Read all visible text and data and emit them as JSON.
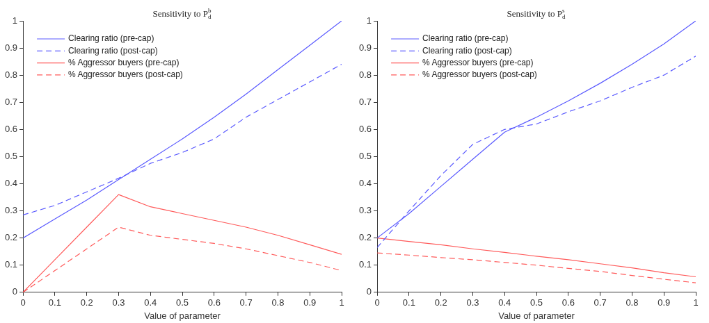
{
  "chart_data": [
    {
      "type": "line",
      "title": "Sensitivity to P$_{d}$$^{b}$",
      "xlabel": "Value of parameter",
      "x": [
        0,
        0.1,
        0.2,
        0.3,
        0.4,
        0.5,
        0.6,
        0.7,
        0.8,
        0.9,
        1
      ],
      "xlim": [
        0,
        1
      ],
      "xticks": [
        0,
        0.1,
        0.2,
        0.3,
        0.4,
        0.5,
        0.6,
        0.7,
        0.8,
        0.9,
        1
      ],
      "ylim": [
        0,
        1
      ],
      "yticks": [
        0,
        0.1,
        0.2,
        0.3,
        0.4,
        0.5,
        0.6,
        0.7,
        0.8,
        0.9,
        1
      ],
      "grid": false,
      "legend": "top left",
      "marker": "none",
      "series": [
        {
          "name": "Clearing ratio (pre-cap)",
          "color": "#5a5aff",
          "line_style": "solid",
          "values": [
            0.2,
            0.27,
            0.34,
            0.415,
            0.49,
            0.565,
            0.645,
            0.73,
            0.82,
            0.91,
            1.0
          ]
        },
        {
          "name": "Clearing ratio (post-cap)",
          "color": "#5a5aff",
          "line_style": "dashed",
          "values": [
            0.285,
            0.32,
            0.37,
            0.42,
            0.475,
            0.515,
            0.565,
            0.645,
            0.71,
            0.775,
            0.84
          ]
        },
        {
          "name": "% Aggressor buyers (pre-cap)",
          "color": "#ff5a5a",
          "line_style": "solid",
          "values": [
            0,
            0.12,
            0.24,
            0.36,
            0.315,
            0.29,
            0.265,
            0.24,
            0.21,
            0.175,
            0.14
          ]
        },
        {
          "name": "% Aggressor buyers (post-cap)",
          "color": "#ff5a5a",
          "line_style": "dashed",
          "values": [
            0,
            0.08,
            0.16,
            0.24,
            0.21,
            0.195,
            0.18,
            0.16,
            0.135,
            0.11,
            0.08
          ]
        }
      ]
    },
    {
      "type": "line",
      "title": "Sensitivity to P$_{d}$$^{s}$",
      "xlabel": "Value of parameter",
      "x": [
        0,
        0.1,
        0.2,
        0.3,
        0.4,
        0.5,
        0.6,
        0.7,
        0.8,
        0.9,
        1
      ],
      "xlim": [
        0,
        1
      ],
      "xticks": [
        0,
        0.1,
        0.2,
        0.3,
        0.4,
        0.5,
        0.6,
        0.7,
        0.8,
        0.9,
        1
      ],
      "ylim": [
        0,
        1
      ],
      "yticks": [
        0,
        0.1,
        0.2,
        0.3,
        0.4,
        0.5,
        0.6,
        0.7,
        0.8,
        0.9,
        1
      ],
      "grid": false,
      "legend": "top left",
      "marker": "none",
      "series": [
        {
          "name": "Clearing ratio (pre-cap)",
          "color": "#5a5aff",
          "line_style": "solid",
          "values": [
            0.2,
            0.29,
            0.39,
            0.49,
            0.59,
            0.645,
            0.705,
            0.77,
            0.84,
            0.915,
            1.0
          ]
        },
        {
          "name": "Clearing ratio (post-cap)",
          "color": "#5a5aff",
          "line_style": "dashed",
          "values": [
            0.165,
            0.3,
            0.43,
            0.545,
            0.6,
            0.62,
            0.665,
            0.705,
            0.755,
            0.8,
            0.87
          ]
        },
        {
          "name": "% Aggressor buyers (pre-cap)",
          "color": "#ff5a5a",
          "line_style": "solid",
          "values": [
            0.2,
            0.187,
            0.175,
            0.16,
            0.147,
            0.133,
            0.12,
            0.105,
            0.09,
            0.072,
            0.057
          ]
        },
        {
          "name": "% Aggressor buyers (post-cap)",
          "color": "#ff5a5a",
          "line_style": "dashed",
          "values": [
            0.145,
            0.137,
            0.128,
            0.12,
            0.11,
            0.1,
            0.088,
            0.077,
            0.062,
            0.048,
            0.035
          ]
        }
      ]
    }
  ]
}
